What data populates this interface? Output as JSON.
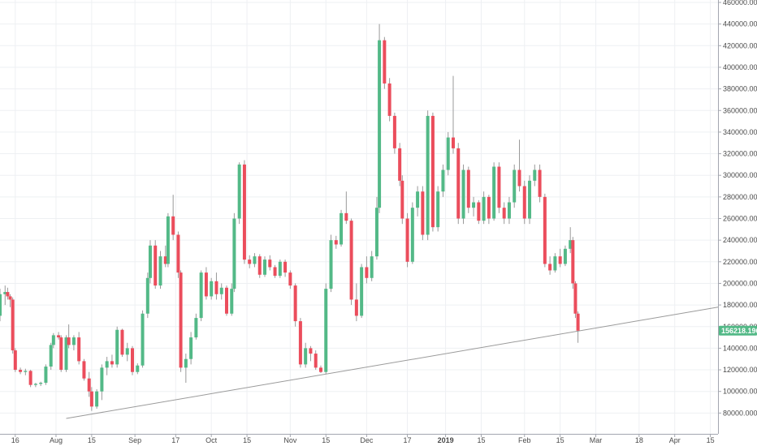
{
  "chart_data": {
    "type": "candlestick",
    "colors": {
      "up": "#53b987",
      "down": "#eb4d5c",
      "wick": "#999999",
      "grid": "#eef0f3",
      "axis": "#a3a6af",
      "trendline": "#9a9a9a",
      "price_tag": "#53b987"
    },
    "grid": true,
    "y_axis": {
      "position": "right",
      "range": [
        60000,
        460000
      ],
      "ticks": [
        "80000.0000",
        "100000.0000",
        "120000.0000",
        "140000.0000",
        "160000.0000",
        "180000.0000",
        "200000.0000",
        "220000.0000",
        "240000.0000",
        "260000.0000",
        "280000.0000",
        "300000.0000",
        "320000.0000",
        "340000.0000",
        "360000.0000",
        "380000.0000",
        "400000.0000",
        "420000.0000",
        "440000.0000",
        "460000.0000"
      ],
      "tick_values": [
        80000,
        100000,
        120000,
        140000,
        160000,
        180000,
        200000,
        220000,
        240000,
        260000,
        280000,
        300000,
        320000,
        340000,
        360000,
        380000,
        400000,
        420000,
        440000,
        460000
      ]
    },
    "x_axis": {
      "start": "2018-07-10",
      "end": "2019-04-18",
      "ticks": [
        {
          "label": "16",
          "date": "2018-07-16"
        },
        {
          "label": "Aug",
          "date": "2018-08-01"
        },
        {
          "label": "15",
          "date": "2018-08-15"
        },
        {
          "label": "Sep",
          "date": "2018-09-01"
        },
        {
          "label": "17",
          "date": "2018-09-17"
        },
        {
          "label": "Oct",
          "date": "2018-10-01"
        },
        {
          "label": "15",
          "date": "2018-10-15"
        },
        {
          "label": "Nov",
          "date": "2018-11-01"
        },
        {
          "label": "15",
          "date": "2018-11-15"
        },
        {
          "label": "Dec",
          "date": "2018-12-01"
        },
        {
          "label": "17",
          "date": "2018-12-17"
        },
        {
          "label": "2019",
          "date": "2019-01-01",
          "bold": true
        },
        {
          "label": "15",
          "date": "2019-01-15"
        },
        {
          "label": "Feb",
          "date": "2019-02-01"
        },
        {
          "label": "15",
          "date": "2019-02-15"
        },
        {
          "label": "Mar",
          "date": "2019-03-01"
        },
        {
          "label": "18",
          "date": "2019-03-18"
        },
        {
          "label": "Apr",
          "date": "2019-04-01"
        },
        {
          "label": "15",
          "date": "2019-04-15"
        }
      ]
    },
    "last_price": {
      "label": "156218.1962",
      "value": 156218.1962
    },
    "trendline": {
      "points": [
        {
          "date": "2018-08-05",
          "value": 75000
        },
        {
          "date": "2019-04-18",
          "value": 178000
        }
      ]
    },
    "candles": [
      {
        "date": "2018-07-10",
        "o": 170000,
        "h": 195000,
        "l": 165000,
        "c": 190000
      },
      {
        "date": "2018-07-12",
        "o": 190000,
        "h": 198000,
        "l": 180000,
        "c": 192000
      },
      {
        "date": "2018-07-13",
        "o": 192000,
        "h": 196000,
        "l": 185000,
        "c": 188000
      },
      {
        "date": "2018-07-14",
        "o": 188000,
        "h": 190000,
        "l": 178000,
        "c": 185000
      },
      {
        "date": "2018-07-15",
        "o": 185000,
        "h": 187000,
        "l": 135000,
        "c": 138000
      },
      {
        "date": "2018-07-16",
        "o": 138000,
        "h": 140000,
        "l": 118000,
        "c": 120000
      },
      {
        "date": "2018-07-18",
        "o": 120000,
        "h": 122000,
        "l": 116000,
        "c": 118000
      },
      {
        "date": "2018-07-20",
        "o": 118000,
        "h": 121000,
        "l": 115000,
        "c": 119000
      },
      {
        "date": "2018-07-22",
        "o": 119000,
        "h": 120000,
        "l": 104000,
        "c": 106000
      },
      {
        "date": "2018-07-24",
        "o": 106000,
        "h": 108000,
        "l": 104000,
        "c": 107000
      },
      {
        "date": "2018-07-26",
        "o": 107000,
        "h": 109000,
        "l": 105000,
        "c": 108000
      },
      {
        "date": "2018-07-28",
        "o": 108000,
        "h": 125000,
        "l": 106000,
        "c": 123000
      },
      {
        "date": "2018-07-30",
        "o": 123000,
        "h": 145000,
        "l": 120000,
        "c": 143000
      },
      {
        "date": "2018-07-31",
        "o": 143000,
        "h": 154000,
        "l": 140000,
        "c": 152000
      },
      {
        "date": "2018-08-02",
        "o": 152000,
        "h": 155000,
        "l": 148000,
        "c": 150000
      },
      {
        "date": "2018-08-03",
        "o": 150000,
        "h": 152000,
        "l": 118000,
        "c": 120000
      },
      {
        "date": "2018-08-05",
        "o": 120000,
        "h": 152000,
        "l": 118000,
        "c": 150000
      },
      {
        "date": "2018-08-06",
        "o": 150000,
        "h": 162000,
        "l": 140000,
        "c": 143000
      },
      {
        "date": "2018-08-08",
        "o": 143000,
        "h": 152000,
        "l": 138000,
        "c": 150000
      },
      {
        "date": "2018-08-10",
        "o": 150000,
        "h": 155000,
        "l": 125000,
        "c": 128000
      },
      {
        "date": "2018-08-12",
        "o": 128000,
        "h": 130000,
        "l": 110000,
        "c": 112000
      },
      {
        "date": "2018-08-14",
        "o": 112000,
        "h": 118000,
        "l": 95000,
        "c": 100000
      },
      {
        "date": "2018-08-15",
        "o": 100000,
        "h": 104000,
        "l": 82000,
        "c": 86000
      },
      {
        "date": "2018-08-17",
        "o": 86000,
        "h": 102000,
        "l": 84000,
        "c": 100000
      },
      {
        "date": "2018-08-19",
        "o": 100000,
        "h": 125000,
        "l": 92000,
        "c": 122000
      },
      {
        "date": "2018-08-21",
        "o": 122000,
        "h": 132000,
        "l": 115000,
        "c": 128000
      },
      {
        "date": "2018-08-23",
        "o": 128000,
        "h": 134000,
        "l": 122000,
        "c": 125000
      },
      {
        "date": "2018-08-25",
        "o": 125000,
        "h": 160000,
        "l": 122000,
        "c": 157000
      },
      {
        "date": "2018-08-27",
        "o": 157000,
        "h": 158000,
        "l": 132000,
        "c": 134000
      },
      {
        "date": "2018-08-29",
        "o": 134000,
        "h": 145000,
        "l": 128000,
        "c": 140000
      },
      {
        "date": "2018-08-31",
        "o": 140000,
        "h": 142000,
        "l": 115000,
        "c": 118000
      },
      {
        "date": "2018-09-02",
        "o": 118000,
        "h": 126000,
        "l": 116000,
        "c": 124000
      },
      {
        "date": "2018-09-04",
        "o": 124000,
        "h": 175000,
        "l": 122000,
        "c": 172000
      },
      {
        "date": "2018-09-06",
        "o": 172000,
        "h": 210000,
        "l": 168000,
        "c": 205000
      },
      {
        "date": "2018-09-07",
        "o": 205000,
        "h": 240000,
        "l": 200000,
        "c": 235000
      },
      {
        "date": "2018-09-09",
        "o": 235000,
        "h": 240000,
        "l": 195000,
        "c": 198000
      },
      {
        "date": "2018-09-11",
        "o": 198000,
        "h": 230000,
        "l": 195000,
        "c": 225000
      },
      {
        "date": "2018-09-13",
        "o": 225000,
        "h": 235000,
        "l": 215000,
        "c": 218000
      },
      {
        "date": "2018-09-14",
        "o": 218000,
        "h": 265000,
        "l": 215000,
        "c": 262000
      },
      {
        "date": "2018-09-16",
        "o": 262000,
        "h": 282000,
        "l": 240000,
        "c": 245000
      },
      {
        "date": "2018-09-18",
        "o": 245000,
        "h": 248000,
        "l": 205000,
        "c": 210000
      },
      {
        "date": "2018-09-19",
        "o": 210000,
        "h": 212000,
        "l": 118000,
        "c": 122000
      },
      {
        "date": "2018-09-21",
        "o": 122000,
        "h": 135000,
        "l": 108000,
        "c": 130000
      },
      {
        "date": "2018-09-23",
        "o": 130000,
        "h": 155000,
        "l": 125000,
        "c": 150000
      },
      {
        "date": "2018-09-25",
        "o": 150000,
        "h": 172000,
        "l": 148000,
        "c": 168000
      },
      {
        "date": "2018-09-27",
        "o": 168000,
        "h": 212000,
        "l": 165000,
        "c": 210000
      },
      {
        "date": "2018-09-29",
        "o": 210000,
        "h": 215000,
        "l": 185000,
        "c": 188000
      },
      {
        "date": "2018-10-01",
        "o": 188000,
        "h": 205000,
        "l": 185000,
        "c": 202000
      },
      {
        "date": "2018-10-03",
        "o": 202000,
        "h": 210000,
        "l": 185000,
        "c": 190000
      },
      {
        "date": "2018-10-05",
        "o": 190000,
        "h": 200000,
        "l": 185000,
        "c": 196000
      },
      {
        "date": "2018-10-07",
        "o": 196000,
        "h": 198000,
        "l": 170000,
        "c": 172000
      },
      {
        "date": "2018-10-09",
        "o": 172000,
        "h": 200000,
        "l": 170000,
        "c": 195000
      },
      {
        "date": "2018-10-10",
        "o": 195000,
        "h": 265000,
        "l": 192000,
        "c": 260000
      },
      {
        "date": "2018-10-12",
        "o": 260000,
        "h": 312000,
        "l": 255000,
        "c": 310000
      },
      {
        "date": "2018-10-14",
        "o": 310000,
        "h": 314000,
        "l": 218000,
        "c": 222000
      },
      {
        "date": "2018-10-16",
        "o": 222000,
        "h": 226000,
        "l": 214000,
        "c": 218000
      },
      {
        "date": "2018-10-18",
        "o": 218000,
        "h": 228000,
        "l": 215000,
        "c": 225000
      },
      {
        "date": "2018-10-20",
        "o": 225000,
        "h": 227000,
        "l": 205000,
        "c": 208000
      },
      {
        "date": "2018-10-22",
        "o": 208000,
        "h": 225000,
        "l": 206000,
        "c": 222000
      },
      {
        "date": "2018-10-24",
        "o": 222000,
        "h": 226000,
        "l": 212000,
        "c": 215000
      },
      {
        "date": "2018-10-26",
        "o": 215000,
        "h": 217000,
        "l": 205000,
        "c": 207000
      },
      {
        "date": "2018-10-28",
        "o": 207000,
        "h": 222000,
        "l": 205000,
        "c": 220000
      },
      {
        "date": "2018-10-30",
        "o": 220000,
        "h": 222000,
        "l": 206000,
        "c": 210000
      },
      {
        "date": "2018-11-01",
        "o": 210000,
        "h": 212000,
        "l": 195000,
        "c": 198000
      },
      {
        "date": "2018-11-03",
        "o": 198000,
        "h": 200000,
        "l": 160000,
        "c": 165000
      },
      {
        "date": "2018-11-05",
        "o": 165000,
        "h": 168000,
        "l": 122000,
        "c": 125000
      },
      {
        "date": "2018-11-07",
        "o": 125000,
        "h": 145000,
        "l": 122000,
        "c": 140000
      },
      {
        "date": "2018-11-09",
        "o": 140000,
        "h": 142000,
        "l": 128000,
        "c": 135000
      },
      {
        "date": "2018-11-11",
        "o": 135000,
        "h": 138000,
        "l": 120000,
        "c": 122000
      },
      {
        "date": "2018-11-13",
        "o": 122000,
        "h": 124000,
        "l": 117000,
        "c": 118000
      },
      {
        "date": "2018-11-15",
        "o": 118000,
        "h": 200000,
        "l": 116000,
        "c": 195000
      },
      {
        "date": "2018-11-17",
        "o": 195000,
        "h": 245000,
        "l": 192000,
        "c": 240000
      },
      {
        "date": "2018-11-19",
        "o": 240000,
        "h": 244000,
        "l": 232000,
        "c": 236000
      },
      {
        "date": "2018-11-21",
        "o": 236000,
        "h": 268000,
        "l": 234000,
        "c": 265000
      },
      {
        "date": "2018-11-23",
        "o": 265000,
        "h": 285000,
        "l": 255000,
        "c": 258000
      },
      {
        "date": "2018-11-25",
        "o": 258000,
        "h": 260000,
        "l": 180000,
        "c": 185000
      },
      {
        "date": "2018-11-27",
        "o": 185000,
        "h": 200000,
        "l": 165000,
        "c": 170000
      },
      {
        "date": "2018-11-29",
        "o": 170000,
        "h": 218000,
        "l": 168000,
        "c": 215000
      },
      {
        "date": "2018-12-01",
        "o": 215000,
        "h": 225000,
        "l": 200000,
        "c": 205000
      },
      {
        "date": "2018-12-03",
        "o": 205000,
        "h": 230000,
        "l": 202000,
        "c": 225000
      },
      {
        "date": "2018-12-05",
        "o": 225000,
        "h": 280000,
        "l": 222000,
        "c": 270000
      },
      {
        "date": "2018-12-06",
        "o": 270000,
        "h": 440000,
        "l": 265000,
        "c": 425000
      },
      {
        "date": "2018-12-08",
        "o": 425000,
        "h": 428000,
        "l": 380000,
        "c": 385000
      },
      {
        "date": "2018-12-10",
        "o": 385000,
        "h": 390000,
        "l": 350000,
        "c": 355000
      },
      {
        "date": "2018-12-12",
        "o": 355000,
        "h": 358000,
        "l": 320000,
        "c": 325000
      },
      {
        "date": "2018-12-14",
        "o": 325000,
        "h": 330000,
        "l": 290000,
        "c": 295000
      },
      {
        "date": "2018-12-15",
        "o": 295000,
        "h": 300000,
        "l": 255000,
        "c": 260000
      },
      {
        "date": "2018-12-17",
        "o": 260000,
        "h": 265000,
        "l": 215000,
        "c": 220000
      },
      {
        "date": "2018-12-19",
        "o": 220000,
        "h": 275000,
        "l": 218000,
        "c": 270000
      },
      {
        "date": "2018-12-21",
        "o": 270000,
        "h": 290000,
        "l": 262000,
        "c": 285000
      },
      {
        "date": "2018-12-23",
        "o": 285000,
        "h": 290000,
        "l": 240000,
        "c": 245000
      },
      {
        "date": "2018-12-25",
        "o": 245000,
        "h": 360000,
        "l": 240000,
        "c": 355000
      },
      {
        "date": "2018-12-27",
        "o": 355000,
        "h": 358000,
        "l": 248000,
        "c": 252000
      },
      {
        "date": "2018-12-29",
        "o": 252000,
        "h": 290000,
        "l": 248000,
        "c": 285000
      },
      {
        "date": "2018-12-31",
        "o": 285000,
        "h": 310000,
        "l": 280000,
        "c": 305000
      },
      {
        "date": "2019-01-02",
        "o": 305000,
        "h": 340000,
        "l": 300000,
        "c": 335000
      },
      {
        "date": "2019-01-04",
        "o": 335000,
        "h": 392000,
        "l": 320000,
        "c": 325000
      },
      {
        "date": "2019-01-06",
        "o": 325000,
        "h": 330000,
        "l": 255000,
        "c": 260000
      },
      {
        "date": "2019-01-08",
        "o": 260000,
        "h": 310000,
        "l": 255000,
        "c": 305000
      },
      {
        "date": "2019-01-10",
        "o": 305000,
        "h": 308000,
        "l": 265000,
        "c": 270000
      },
      {
        "date": "2019-01-12",
        "o": 270000,
        "h": 280000,
        "l": 262000,
        "c": 275000
      },
      {
        "date": "2019-01-14",
        "o": 275000,
        "h": 277000,
        "l": 255000,
        "c": 258000
      },
      {
        "date": "2019-01-16",
        "o": 258000,
        "h": 285000,
        "l": 255000,
        "c": 280000
      },
      {
        "date": "2019-01-18",
        "o": 280000,
        "h": 282000,
        "l": 255000,
        "c": 260000
      },
      {
        "date": "2019-01-20",
        "o": 260000,
        "h": 312000,
        "l": 258000,
        "c": 308000
      },
      {
        "date": "2019-01-22",
        "o": 308000,
        "h": 312000,
        "l": 265000,
        "c": 270000
      },
      {
        "date": "2019-01-24",
        "o": 270000,
        "h": 275000,
        "l": 255000,
        "c": 260000
      },
      {
        "date": "2019-01-26",
        "o": 260000,
        "h": 280000,
        "l": 255000,
        "c": 275000
      },
      {
        "date": "2019-01-28",
        "o": 275000,
        "h": 310000,
        "l": 270000,
        "c": 305000
      },
      {
        "date": "2019-01-30",
        "o": 305000,
        "h": 333000,
        "l": 285000,
        "c": 290000
      },
      {
        "date": "2019-02-01",
        "o": 290000,
        "h": 295000,
        "l": 255000,
        "c": 260000
      },
      {
        "date": "2019-02-03",
        "o": 260000,
        "h": 300000,
        "l": 255000,
        "c": 295000
      },
      {
        "date": "2019-02-05",
        "o": 295000,
        "h": 310000,
        "l": 290000,
        "c": 305000
      },
      {
        "date": "2019-02-07",
        "o": 305000,
        "h": 310000,
        "l": 275000,
        "c": 280000
      },
      {
        "date": "2019-02-09",
        "o": 280000,
        "h": 283000,
        "l": 215000,
        "c": 218000
      },
      {
        "date": "2019-02-11",
        "o": 218000,
        "h": 225000,
        "l": 208000,
        "c": 212000
      },
      {
        "date": "2019-02-13",
        "o": 212000,
        "h": 228000,
        "l": 210000,
        "c": 225000
      },
      {
        "date": "2019-02-15",
        "o": 225000,
        "h": 232000,
        "l": 215000,
        "c": 218000
      },
      {
        "date": "2019-02-17",
        "o": 218000,
        "h": 235000,
        "l": 216000,
        "c": 232000
      },
      {
        "date": "2019-02-19",
        "o": 232000,
        "h": 252000,
        "l": 228000,
        "c": 240000
      },
      {
        "date": "2019-02-20",
        "o": 240000,
        "h": 243000,
        "l": 195000,
        "c": 200000
      },
      {
        "date": "2019-02-21",
        "o": 200000,
        "h": 202000,
        "l": 168000,
        "c": 172000
      },
      {
        "date": "2019-02-22",
        "o": 172000,
        "h": 174000,
        "l": 145000,
        "c": 156218
      }
    ]
  }
}
